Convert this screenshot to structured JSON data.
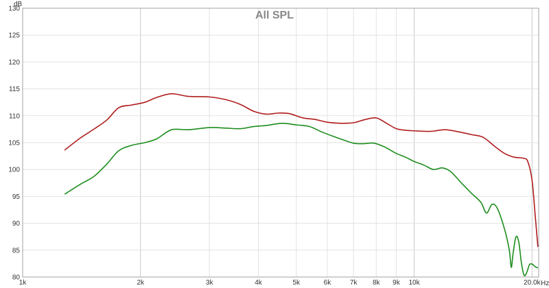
{
  "chart_data": {
    "type": "line",
    "title": "All SPL",
    "xscale": "log",
    "xlim": [
      1000,
      20800
    ],
    "ylim": [
      80,
      130
    ],
    "grid": true,
    "y_ticks": [
      80,
      85,
      90,
      95,
      100,
      105,
      110,
      115,
      120,
      125,
      130
    ],
    "y_unit": "dB",
    "x_unit": "Hz",
    "x_ticks": [
      {
        "value": 1000,
        "label": "1k"
      },
      {
        "value": 2000,
        "label": "2k"
      },
      {
        "value": 3000,
        "label": "3k"
      },
      {
        "value": 4000,
        "label": "4k"
      },
      {
        "value": 5000,
        "label": "5k"
      },
      {
        "value": 6000,
        "label": "6k"
      },
      {
        "value": 7000,
        "label": "7k"
      },
      {
        "value": 8000,
        "label": "8k"
      },
      {
        "value": 9000,
        "label": "9k"
      },
      {
        "value": 10000,
        "label": "10k"
      },
      {
        "value": 20000,
        "label": "20.0k"
      }
    ],
    "series": [
      {
        "color": "#b01c1c",
        "points": [
          [
            1280,
            103.6
          ],
          [
            1400,
            105.8
          ],
          [
            1520,
            107.5
          ],
          [
            1640,
            109.2
          ],
          [
            1760,
            111.5
          ],
          [
            1900,
            112.0
          ],
          [
            2050,
            112.5
          ],
          [
            2200,
            113.4
          ],
          [
            2400,
            114.1
          ],
          [
            2650,
            113.6
          ],
          [
            3000,
            113.5
          ],
          [
            3300,
            113.0
          ],
          [
            3600,
            112.1
          ],
          [
            3900,
            110.8
          ],
          [
            4200,
            110.3
          ],
          [
            4500,
            110.5
          ],
          [
            4800,
            110.4
          ],
          [
            5200,
            109.6
          ],
          [
            5600,
            109.3
          ],
          [
            6000,
            108.8
          ],
          [
            6500,
            108.6
          ],
          [
            7000,
            108.7
          ],
          [
            7500,
            109.3
          ],
          [
            8000,
            109.6
          ],
          [
            8500,
            108.6
          ],
          [
            9000,
            107.6
          ],
          [
            9500,
            107.3
          ],
          [
            10000,
            107.2
          ],
          [
            11000,
            107.1
          ],
          [
            12000,
            107.4
          ],
          [
            13000,
            107.0
          ],
          [
            14000,
            106.5
          ],
          [
            15000,
            106.0
          ],
          [
            16000,
            104.4
          ],
          [
            17000,
            103.0
          ],
          [
            18000,
            102.3
          ],
          [
            19000,
            102.1
          ],
          [
            19500,
            101.5
          ],
          [
            20000,
            98.0
          ],
          [
            20400,
            91.0
          ],
          [
            20700,
            85.6
          ]
        ]
      },
      {
        "color": "#1c8c1c",
        "points": [
          [
            1280,
            95.4
          ],
          [
            1400,
            97.2
          ],
          [
            1520,
            98.7
          ],
          [
            1640,
            101.0
          ],
          [
            1760,
            103.5
          ],
          [
            1900,
            104.5
          ],
          [
            2050,
            105.0
          ],
          [
            2200,
            105.7
          ],
          [
            2400,
            107.4
          ],
          [
            2650,
            107.4
          ],
          [
            3000,
            107.8
          ],
          [
            3300,
            107.7
          ],
          [
            3600,
            107.6
          ],
          [
            3900,
            108.0
          ],
          [
            4200,
            108.2
          ],
          [
            4600,
            108.6
          ],
          [
            5000,
            108.3
          ],
          [
            5400,
            108.0
          ],
          [
            5800,
            107.0
          ],
          [
            6200,
            106.2
          ],
          [
            6600,
            105.5
          ],
          [
            7000,
            104.9
          ],
          [
            7400,
            104.8
          ],
          [
            7900,
            104.9
          ],
          [
            8400,
            104.2
          ],
          [
            9000,
            103.0
          ],
          [
            9500,
            102.3
          ],
          [
            10000,
            101.5
          ],
          [
            10600,
            100.8
          ],
          [
            11200,
            100.0
          ],
          [
            11800,
            100.3
          ],
          [
            12400,
            99.6
          ],
          [
            13200,
            97.5
          ],
          [
            14000,
            95.6
          ],
          [
            14800,
            93.9
          ],
          [
            15300,
            91.9
          ],
          [
            15800,
            93.5
          ],
          [
            16300,
            92.8
          ],
          [
            17000,
            89.0
          ],
          [
            17500,
            85.0
          ],
          [
            17700,
            81.8
          ],
          [
            17900,
            84.5
          ],
          [
            18200,
            87.5
          ],
          [
            18500,
            86.5
          ],
          [
            18800,
            82.5
          ],
          [
            19100,
            80.3
          ],
          [
            19400,
            80.9
          ],
          [
            19700,
            82.3
          ],
          [
            20000,
            82.4
          ],
          [
            20400,
            81.9
          ],
          [
            20700,
            81.7
          ]
        ]
      }
    ]
  }
}
